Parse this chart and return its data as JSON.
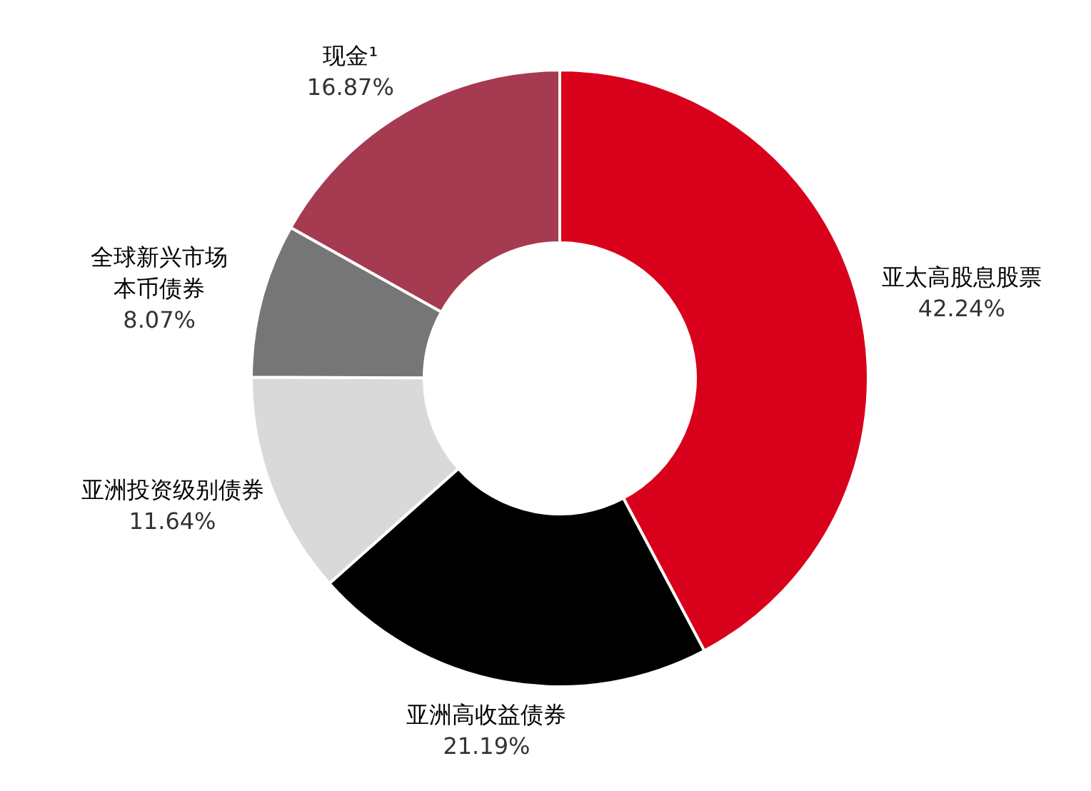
{
  "chart_data": {
    "type": "donut",
    "categories": [
      "亚太高股息股票",
      "亚洲高收益债券",
      "亚洲投资级别债券",
      "全球新兴市场本币债券",
      "现金¹"
    ],
    "values": [
      42.24,
      21.19,
      11.64,
      8.07,
      16.87
    ],
    "colors": [
      "#d9001b",
      "#000000",
      "#d9d9d9",
      "#767676",
      "#a63a50"
    ],
    "value_labels": [
      "42.24%",
      "21.19%",
      "11.64%",
      "8.07%",
      "16.87%"
    ]
  }
}
